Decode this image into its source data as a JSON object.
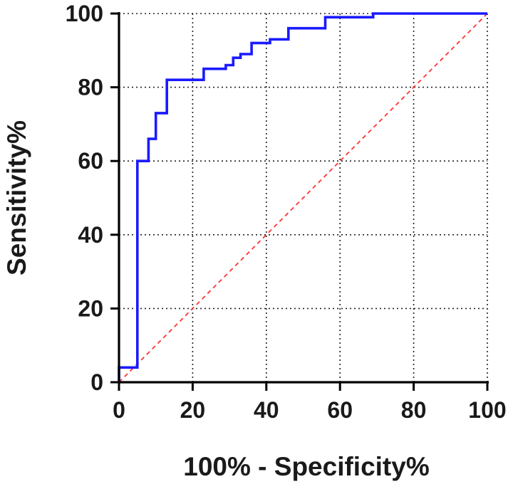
{
  "chart_data": {
    "type": "line",
    "title": "",
    "xlabel": "100% - Specificity%",
    "ylabel": "Sensitivity%",
    "xlim": [
      0,
      100
    ],
    "ylim": [
      0,
      100
    ],
    "x_ticks": [
      "0",
      "20",
      "40",
      "60",
      "80",
      "100"
    ],
    "y_ticks": [
      "0",
      "20",
      "40",
      "60",
      "80",
      "100"
    ],
    "grid": true,
    "legend": "none",
    "series": [
      {
        "style": "step",
        "color": "#1a1aff",
        "points": [
          [
            0,
            0
          ],
          [
            0,
            4
          ],
          [
            5,
            4
          ],
          [
            5,
            60
          ],
          [
            8,
            60
          ],
          [
            8,
            66
          ],
          [
            10,
            66
          ],
          [
            10,
            73
          ],
          [
            13,
            73
          ],
          [
            13,
            82
          ],
          [
            23,
            82
          ],
          [
            23,
            85
          ],
          [
            29,
            85
          ],
          [
            29,
            86
          ],
          [
            31,
            86
          ],
          [
            31,
            88
          ],
          [
            33,
            88
          ],
          [
            33,
            89
          ],
          [
            36,
            89
          ],
          [
            36,
            92
          ],
          [
            41,
            92
          ],
          [
            41,
            93
          ],
          [
            46,
            93
          ],
          [
            46,
            96
          ],
          [
            56,
            96
          ],
          [
            56,
            99
          ],
          [
            69,
            99
          ],
          [
            69,
            100
          ],
          [
            100,
            100
          ]
        ]
      },
      {
        "style": "reference-dashed",
        "color": "#ff3333",
        "points": [
          [
            0,
            0
          ],
          [
            100,
            100
          ]
        ]
      }
    ]
  }
}
